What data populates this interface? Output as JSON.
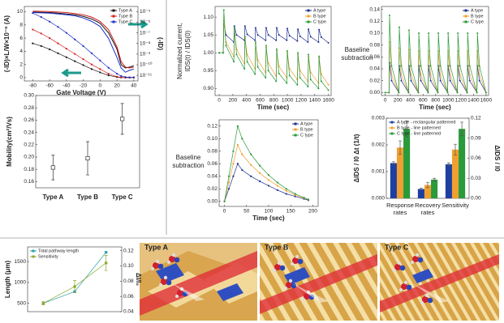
{
  "chart_data": [
    {
      "type": "line",
      "xlabel": "Gate Voltage (V)",
      "ylabel": "(-ID)×L/W×10⁻⁶ (A)",
      "y2label": "(-ID)",
      "x": [
        -80,
        -70,
        -60,
        -50,
        -40,
        -30,
        -20,
        -10,
        0,
        10,
        20,
        25,
        30,
        35,
        40
      ],
      "xlim": [
        -90,
        45
      ],
      "xticks": [
        -80,
        -60,
        -40,
        -20,
        0,
        20,
        40
      ],
      "ylim": [
        -0.5,
        10.8
      ],
      "yticks": [
        0,
        2,
        4,
        6,
        8,
        10
      ],
      "y2lim": [
        3e-12,
        3e-05
      ],
      "y2log": true,
      "y2ticks": [
        {
          "value": 1e-05,
          "label": "10⁻⁵"
        },
        {
          "value": 1e-06,
          "label": "10⁻⁶"
        },
        {
          "value": 1e-07,
          "label": "10⁻⁷"
        },
        {
          "value": 1e-08,
          "label": "10⁻⁸"
        },
        {
          "value": 1e-09,
          "label": "10⁻⁹"
        },
        {
          "value": 1e-10,
          "label": "10⁻¹⁰"
        },
        {
          "value": 1e-11,
          "label": "10⁻¹¹"
        }
      ],
      "legend": "upper right",
      "series": [
        {
          "name": "Type A",
          "color": "#111111",
          "values": [
            5.2,
            4.8,
            4.3,
            3.7,
            3.1,
            2.5,
            1.9,
            1.3,
            0.8,
            0.35,
            0.08,
            0.02,
            0.01,
            0.01,
            0.01
          ],
          "y2_values": [
            9e-06,
            8.5e-06,
            8e-06,
            7e-06,
            6e-06,
            5e-06,
            3.5e-06,
            2e-06,
            8e-07,
            1e-07,
            3e-09,
            1e-10,
            5e-11,
            6e-11,
            8e-11
          ]
        },
        {
          "name": "Type B",
          "color": "#d42020",
          "values": [
            7.3,
            6.7,
            6.0,
            5.2,
            4.4,
            3.6,
            2.8,
            2.0,
            1.3,
            0.6,
            0.15,
            0.05,
            0.02,
            0.02,
            0.02
          ],
          "y2_values": [
            1.1e-05,
            1.05e-05,
            1e-05,
            9e-06,
            8e-06,
            6.5e-06,
            5e-06,
            3e-06,
            1.2e-06,
            2e-07,
            5e-09,
            2e-10,
            6e-11,
            5e-11,
            6e-11
          ]
        },
        {
          "name": "Type C",
          "color": "#2030c8",
          "values": [
            9.8,
            9.2,
            8.5,
            7.7,
            6.8,
            5.8,
            4.8,
            3.7,
            2.6,
            1.5,
            0.6,
            0.25,
            0.08,
            0.05,
            0.05
          ],
          "y2_values": [
            8e-06,
            7.5e-06,
            7e-06,
            6e-06,
            5e-06,
            4e-06,
            2.5e-06,
            1.2e-06,
            4e-07,
            3e-08,
            5e-10,
            5e-11,
            2e-11,
            3e-11,
            4e-11
          ]
        }
      ]
    },
    {
      "type": "errorbar",
      "ylabel": "Mobility(cm²/Vs)",
      "categories": [
        "Type A",
        "Type B",
        "Type C"
      ],
      "values": [
        0.183,
        0.198,
        0.262
      ],
      "errors": [
        0.02,
        0.027,
        0.025
      ],
      "ylim": [
        0.15,
        0.3
      ],
      "yticks": [
        0.16,
        0.18,
        {
          "value": 0.2,
          "label": "0.20"
        },
        0.22,
        0.24,
        0.26,
        0.28,
        {
          "value": 0.3,
          "label": "0.30"
        }
      ]
    },
    {
      "type": "line",
      "xlabel": "Time (sec)",
      "ylabel": [
        "Normalized current,",
        "IDS(t) / IDS(0)"
      ],
      "x": [
        0,
        60,
        68,
        100,
        215,
        223,
        255,
        370,
        378,
        410,
        525,
        533,
        565,
        680,
        688,
        720,
        835,
        843,
        875,
        990,
        998,
        1030,
        1145,
        1153,
        1185,
        1300,
        1308,
        1340,
        1455,
        1463,
        1495,
        1600
      ],
      "xlim": [
        -60,
        1640
      ],
      "xticks": [
        0,
        200,
        400,
        600,
        800,
        1000,
        1200,
        1400,
        1600
      ],
      "ylim": [
        0.88,
        1.13
      ],
      "yticks": [
        {
          "value": 0.9,
          "label": "0.90"
        },
        0.95,
        {
          "value": 1,
          "label": "1.00"
        },
        1.05,
        {
          "value": 1.1,
          "label": "1.10"
        }
      ],
      "legend": "upper right",
      "series": [
        {
          "name": "A type",
          "color": "#1f2f8f",
          "values": [
            1.0,
            1.0,
            1.08,
            1.05,
            1.03,
            1.075,
            1.05,
            1.035,
            1.075,
            1.052,
            1.035,
            1.07,
            1.05,
            1.035,
            1.07,
            1.05,
            1.035,
            1.07,
            1.05,
            1.035,
            1.068,
            1.048,
            1.033,
            1.066,
            1.046,
            1.03,
            1.066,
            1.045,
            1.03,
            1.065,
            1.044,
            1.028
          ]
        },
        {
          "name": "B type",
          "color": "#f0a030",
          "values": [
            1.0,
            1.0,
            1.09,
            1.03,
            0.99,
            1.06,
            1.01,
            0.97,
            1.04,
            0.995,
            0.955,
            1.025,
            0.98,
            0.945,
            1.015,
            0.97,
            0.935,
            1.005,
            0.962,
            0.93,
            1.0,
            0.955,
            0.925,
            0.995,
            0.95,
            0.92,
            0.99,
            0.945,
            0.915,
            0.985,
            0.94,
            0.91
          ]
        },
        {
          "name": "C type",
          "color": "#2a9a3a",
          "values": [
            1.0,
            1.0,
            1.12,
            1.02,
            0.975,
            1.07,
            0.995,
            0.955,
            1.045,
            0.975,
            0.94,
            1.03,
            0.96,
            0.93,
            1.02,
            0.95,
            0.92,
            1.01,
            0.942,
            0.915,
            1.005,
            0.936,
            0.91,
            1.0,
            0.93,
            0.905,
            0.995,
            0.925,
            0.9,
            0.99,
            0.92,
            0.895
          ]
        }
      ]
    },
    {
      "type": "line",
      "xlabel": "Time (sec)",
      "ylabel": [
        "Baseline",
        "subtraction"
      ],
      "x": [
        0,
        60,
        68,
        100,
        215,
        223,
        255,
        370,
        378,
        410,
        525,
        533,
        565,
        680,
        688,
        720,
        835,
        843,
        875,
        990,
        998,
        1030,
        1145,
        1153,
        1185,
        1300,
        1308,
        1340,
        1455,
        1463,
        1495,
        1600
      ],
      "xlim": [
        -60,
        1640
      ],
      "xticks": [
        0,
        200,
        400,
        600,
        800,
        1000,
        1200,
        1400,
        1600
      ],
      "ylim": [
        -0.005,
        0.145
      ],
      "yticks": [
        {
          "value": 0,
          "label": "0.00"
        },
        0.02,
        0.04,
        0.06,
        0.08,
        {
          "value": 0.1,
          "label": "0.10"
        },
        0.12,
        0.14
      ],
      "legend": "upper right",
      "series": [
        {
          "name": "A type",
          "color": "#1f2f8f",
          "values": [
            0,
            0,
            0.05,
            0.02,
            0,
            0.045,
            0.02,
            0,
            0.045,
            0.02,
            0,
            0.045,
            0.02,
            0,
            0.045,
            0.02,
            0,
            0.045,
            0.02,
            0,
            0.045,
            0.02,
            0,
            0.045,
            0.02,
            0,
            0.045,
            0.02,
            0,
            0.045,
            0.02,
            0
          ]
        },
        {
          "name": "B type",
          "color": "#f0a030",
          "values": [
            0,
            0,
            0.085,
            0.03,
            0,
            0.075,
            0.03,
            0,
            0.072,
            0.03,
            0,
            0.07,
            0.03,
            0,
            0.07,
            0.03,
            0,
            0.07,
            0.03,
            0,
            0.07,
            0.03,
            0,
            0.07,
            0.03,
            0,
            0.07,
            0.03,
            0,
            0.07,
            0.03,
            0
          ]
        },
        {
          "name": "C type",
          "color": "#2a9a3a",
          "values": [
            0,
            0,
            0.13,
            0.045,
            0,
            0.11,
            0.045,
            0,
            0.105,
            0.045,
            0,
            0.1,
            0.045,
            0,
            0.1,
            0.045,
            0,
            0.1,
            0.045,
            0,
            0.1,
            0.045,
            0,
            0.1,
            0.045,
            0,
            0.1,
            0.045,
            0,
            0.1,
            0.045,
            0
          ]
        }
      ]
    },
    {
      "type": "line",
      "xlabel": "Time (sec)",
      "ylabel": [
        "Baseline",
        "subtraction"
      ],
      "x": [
        0,
        10,
        20,
        30,
        40,
        60,
        80,
        100,
        120,
        140,
        160,
        180,
        190
      ],
      "xlim": [
        -12,
        212
      ],
      "xticks": [
        0,
        50,
        100,
        150,
        200
      ],
      "ylim": [
        -0.008,
        0.13
      ],
      "yticks": [
        {
          "value": 0,
          "label": "0.00"
        },
        0.02,
        0.04,
        0.06,
        0.08,
        {
          "value": 0.1,
          "label": "0.10"
        },
        0.12
      ],
      "legend": "upper right",
      "series": [
        {
          "name": "A type",
          "color": "#1f2f8f",
          "values": [
            0,
            0.02,
            0.04,
            0.06,
            0.05,
            0.04,
            0.032,
            0.025,
            0.018,
            0.012,
            0.008,
            0.004,
            0.002
          ]
        },
        {
          "name": "B type",
          "color": "#f0a030",
          "values": [
            0,
            0.03,
            0.06,
            0.09,
            0.075,
            0.058,
            0.045,
            0.034,
            0.025,
            0.017,
            0.01,
            0.005,
            0.003
          ]
        },
        {
          "name": "C type",
          "color": "#2a9a3a",
          "values": [
            0,
            0.04,
            0.08,
            0.12,
            0.1,
            0.075,
            0.057,
            0.042,
            0.03,
            0.02,
            0.012,
            0.006,
            0.003
          ]
        }
      ]
    },
    {
      "type": "bar",
      "ylabel": "ΔIDS / I0 Δt (1/t)",
      "y2label": "ΔIDS / I0",
      "categories": [
        "Response rates",
        "Recovery rates"
      ],
      "y2_categories": [
        "Sensitivity"
      ],
      "ylim": [
        0,
        0.003
      ],
      "yticks": [
        {
          "value": 0,
          "label": "0.000"
        },
        0.001,
        0.002,
        0.003
      ],
      "y2lim": [
        0,
        0.12
      ],
      "y2ticks": [
        {
          "value": 0,
          "label": "0.00"
        },
        0.03,
        0.06,
        0.09,
        0.12
      ],
      "legend": "upper left",
      "series": [
        {
          "name": "A type - rectangular patterned",
          "color": "#1f3fa0",
          "values": [
            0.00132,
            0.00035
          ],
          "errors": [
            5e-05,
            3e-05
          ],
          "y2_values": [
            0.051
          ],
          "y2_errors": [
            0.002
          ]
        },
        {
          "name": "B type - line patterned",
          "color": "#f0a030",
          "values": [
            0.0019,
            0.0005
          ],
          "errors": [
            0.00025,
            0.0001
          ],
          "y2_values": [
            0.073
          ],
          "y2_errors": [
            0.008
          ]
        },
        {
          "name": "C type - line patterned",
          "color": "#2a9a3a",
          "values": [
            0.0026,
            0.0007
          ],
          "errors": [
            0.0003,
            5e-05
          ],
          "y2_values": [
            0.104
          ],
          "y2_errors": [
            0.01
          ]
        }
      ]
    },
    {
      "type": "line",
      "ylabel": "Length (μm)",
      "y2label": "ΔI/I₀",
      "categories": [
        null,
        null,
        null
      ],
      "ylim": [
        300,
        1850
      ],
      "yticks": [
        500,
        1000,
        1500
      ],
      "y2lim": [
        0.04,
        0.125
      ],
      "y2ticks": [
        0.04,
        0.06,
        0.08,
        {
          "value": 0.1,
          "label": "0.10"
        },
        0.12
      ],
      "legend": "upper left",
      "series": [
        {
          "name": "Total pathway length",
          "color": "#2aa0a8",
          "values": [
            500,
            780,
            1720
          ]
        },
        {
          "name": "Sensitivity",
          "color": "#8aaa30",
          "axis": "y2",
          "values": [
            0.051,
            0.073,
            0.104
          ],
          "errors": [
            0.002,
            0.008,
            0.01
          ]
        }
      ]
    }
  ],
  "illustrations": {
    "labels": [
      "Type A",
      "Type B",
      "Type C"
    ]
  }
}
